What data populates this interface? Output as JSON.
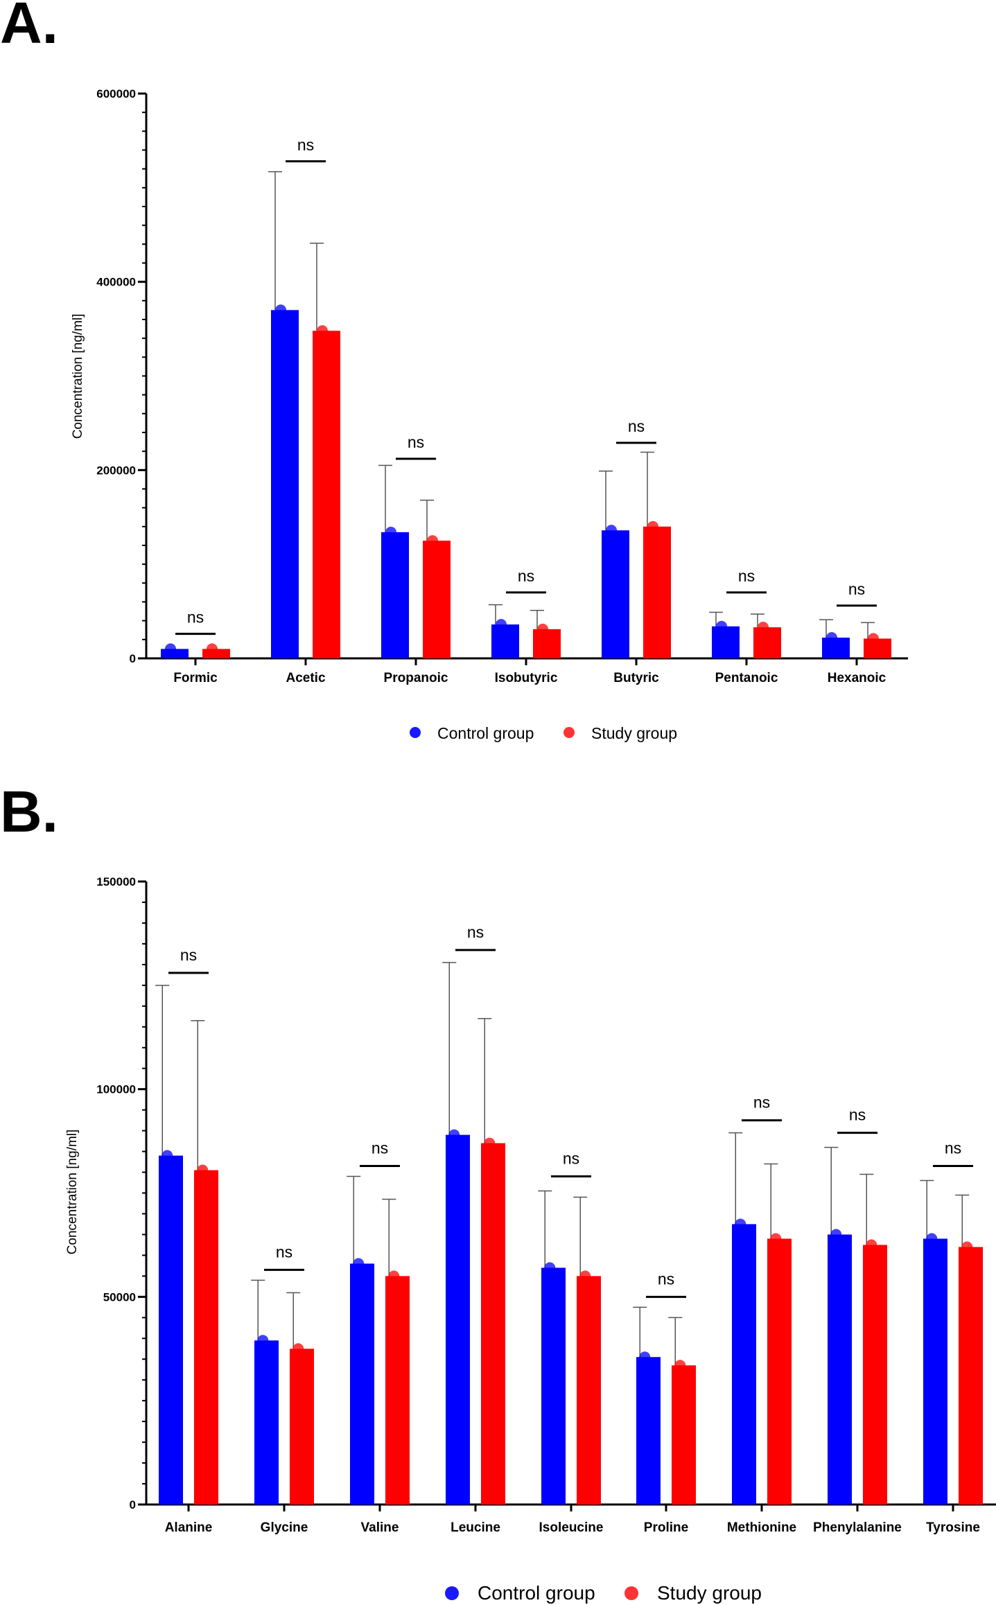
{
  "colors": {
    "control": "#0000ff",
    "study": "#ff0000",
    "axis": "#000000"
  },
  "chart_data": [
    {
      "panel": "A.",
      "type": "bar",
      "ylabel": "Concentration [ng/ml]",
      "ylim": [
        0,
        600000
      ],
      "yticks": [
        0,
        200000,
        400000,
        600000
      ],
      "ytick_labels": [
        "0",
        "200000",
        "400000",
        "600000"
      ],
      "categories": [
        "Formic",
        "Acetic",
        "Propanoic",
        "Isobutyric",
        "Butyric",
        "Pentanoic",
        "Hexanoic"
      ],
      "series": [
        {
          "name": "Control group",
          "values": [
            10000,
            370000,
            134000,
            36000,
            136000,
            34000,
            22000
          ],
          "error": [
            0,
            147000,
            71000,
            21000,
            63000,
            15000,
            19000
          ]
        },
        {
          "name": "Study group",
          "values": [
            10000,
            348000,
            125000,
            31000,
            140000,
            33000,
            21000
          ],
          "error": [
            0,
            93000,
            43000,
            20000,
            79000,
            14000,
            17000
          ]
        }
      ],
      "significance": [
        "ns",
        "ns",
        "ns",
        "ns",
        "ns",
        "ns",
        "ns"
      ],
      "sig_level": [
        26000,
        528000,
        212000,
        70000,
        229000,
        70000,
        56000
      ],
      "legend": [
        "Control group",
        "Study group"
      ]
    },
    {
      "panel": "B.",
      "type": "bar",
      "ylabel": "Concentration [ng/ml]",
      "ylim": [
        0,
        150000
      ],
      "yticks": [
        0,
        50000,
        100000,
        150000
      ],
      "ytick_labels": [
        "0",
        "50000",
        "100000",
        "150000"
      ],
      "categories": [
        "Alanine",
        "Glycine",
        "Valine",
        "Leucine",
        "Isoleucine",
        "Proline",
        "Methionine",
        "Phenylalanine",
        "Tyrosine"
      ],
      "series": [
        {
          "name": "Control group",
          "values": [
            84000,
            39500,
            58000,
            89000,
            57000,
            35500,
            67500,
            65000,
            64000
          ],
          "error": [
            41000,
            14500,
            21000,
            41500,
            18500,
            12000,
            22000,
            21000,
            14000
          ]
        },
        {
          "name": "Study group",
          "values": [
            80500,
            37500,
            55000,
            87000,
            55000,
            33500,
            64000,
            62500,
            62000
          ],
          "error": [
            36000,
            13500,
            18500,
            30000,
            19000,
            11500,
            18000,
            17000,
            12500
          ]
        }
      ],
      "significance": [
        "ns",
        "ns",
        "ns",
        "ns",
        "ns",
        "ns",
        "ns",
        "ns",
        "ns"
      ],
      "sig_level": [
        128000,
        56500,
        81500,
        133500,
        79000,
        50000,
        92500,
        89500,
        81500
      ],
      "legend": [
        "Control group",
        "Study group"
      ]
    }
  ]
}
